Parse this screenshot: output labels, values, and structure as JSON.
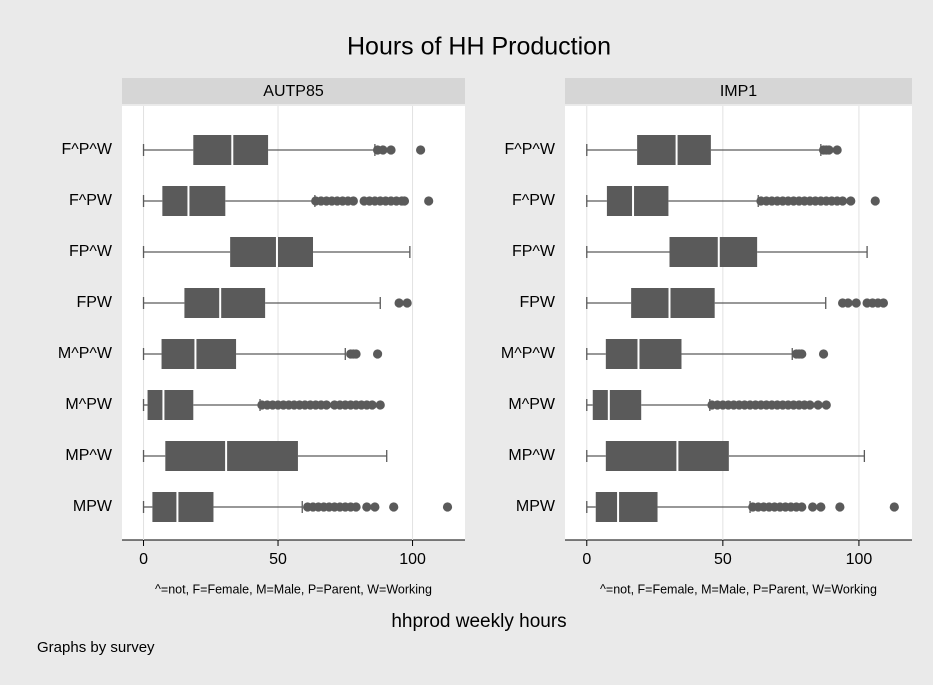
{
  "chart_data": {
    "type": "boxplot",
    "title": "Hours of HH Production",
    "xlabel": "hhprod weekly hours",
    "axis_note": "^=not, F=Female, M=Male, P=Parent, W=Working",
    "footnote": "Graphs by survey",
    "categories": [
      "F^P^W",
      "F^PW",
      "FP^W",
      "FPW",
      "M^P^W",
      "M^PW",
      "MP^W",
      "MPW"
    ],
    "xlim": [
      -8,
      119.5
    ],
    "xticks": [
      0,
      50,
      100
    ],
    "grid": true,
    "color": "#5a5a5a",
    "panels": [
      {
        "name": "AUTP85",
        "boxes": [
          {
            "min": 0,
            "q1": 18.5,
            "median": 33,
            "q3": 46.3,
            "max": 86,
            "outliers": [
              87,
              89,
              92,
              103
            ]
          },
          {
            "min": 0,
            "q1": 7,
            "median": 16.7,
            "q3": 30.4,
            "max": 63.7,
            "outliers": [
              64,
              66,
              68,
              70,
              72,
              74,
              76,
              78,
              82,
              84,
              86,
              88,
              90,
              92,
              94,
              96,
              97,
              106
            ]
          },
          {
            "min": 0,
            "q1": 32.2,
            "median": 49.6,
            "q3": 63,
            "max": 99,
            "outliers": []
          },
          {
            "min": 0,
            "q1": 15.2,
            "median": 28.5,
            "q3": 45.2,
            "max": 88,
            "outliers": [
              95,
              98
            ]
          },
          {
            "min": 0,
            "q1": 6.7,
            "median": 19.3,
            "q3": 34.4,
            "max": 75,
            "outliers": [
              77,
              78,
              79,
              87
            ]
          },
          {
            "min": 0,
            "q1": 1.5,
            "median": 7.4,
            "q3": 18.5,
            "max": 43.3,
            "outliers": [
              44,
              46,
              48,
              50,
              52,
              54,
              56,
              58,
              60,
              62,
              64,
              66,
              68,
              71,
              73,
              75,
              77,
              79,
              81,
              83,
              85,
              88
            ]
          },
          {
            "min": 0,
            "q1": 8.1,
            "median": 30.7,
            "q3": 57.4,
            "max": 90.4,
            "outliers": []
          },
          {
            "min": 0,
            "q1": 3.3,
            "median": 12.6,
            "q3": 26,
            "max": 59,
            "outliers": [
              61,
              63,
              65,
              67,
              69,
              71,
              73,
              75,
              77,
              79,
              83,
              86,
              93,
              113
            ]
          }
        ]
      },
      {
        "name": "IMP1",
        "boxes": [
          {
            "min": 0,
            "q1": 18.5,
            "median": 33,
            "q3": 45.6,
            "max": 86,
            "outliers": [
              87,
              88,
              89,
              92
            ]
          },
          {
            "min": 0,
            "q1": 7.4,
            "median": 17,
            "q3": 30,
            "max": 63,
            "outliers": [
              64,
              66,
              68,
              70,
              72,
              74,
              76,
              78,
              80,
              82,
              84,
              86,
              88,
              90,
              92,
              94,
              97,
              106
            ]
          },
          {
            "min": 0,
            "q1": 30.4,
            "median": 48.5,
            "q3": 62.6,
            "max": 103,
            "outliers": []
          },
          {
            "min": 0,
            "q1": 16.3,
            "median": 30.4,
            "q3": 47,
            "max": 87.8,
            "outliers": [
              94,
              96,
              99,
              103,
              105,
              107,
              109
            ]
          },
          {
            "min": 0,
            "q1": 7,
            "median": 19,
            "q3": 34.8,
            "max": 75.5,
            "outliers": [
              77,
              78,
              79,
              87
            ]
          },
          {
            "min": 0,
            "q1": 2.2,
            "median": 8.1,
            "q3": 20,
            "max": 45.2,
            "outliers": [
              46,
              48,
              50,
              52,
              54,
              56,
              58,
              60,
              62,
              64,
              66,
              68,
              70,
              72,
              74,
              76,
              78,
              80,
              82,
              85,
              88
            ]
          },
          {
            "min": 0,
            "q1": 7,
            "median": 33.3,
            "q3": 52.2,
            "max": 102,
            "outliers": []
          },
          {
            "min": 0,
            "q1": 3.3,
            "median": 11.5,
            "q3": 26,
            "max": 60,
            "outliers": [
              61,
              63,
              65,
              67,
              69,
              71,
              73,
              75,
              77,
              79,
              83,
              86,
              93,
              113
            ]
          }
        ]
      }
    ]
  }
}
